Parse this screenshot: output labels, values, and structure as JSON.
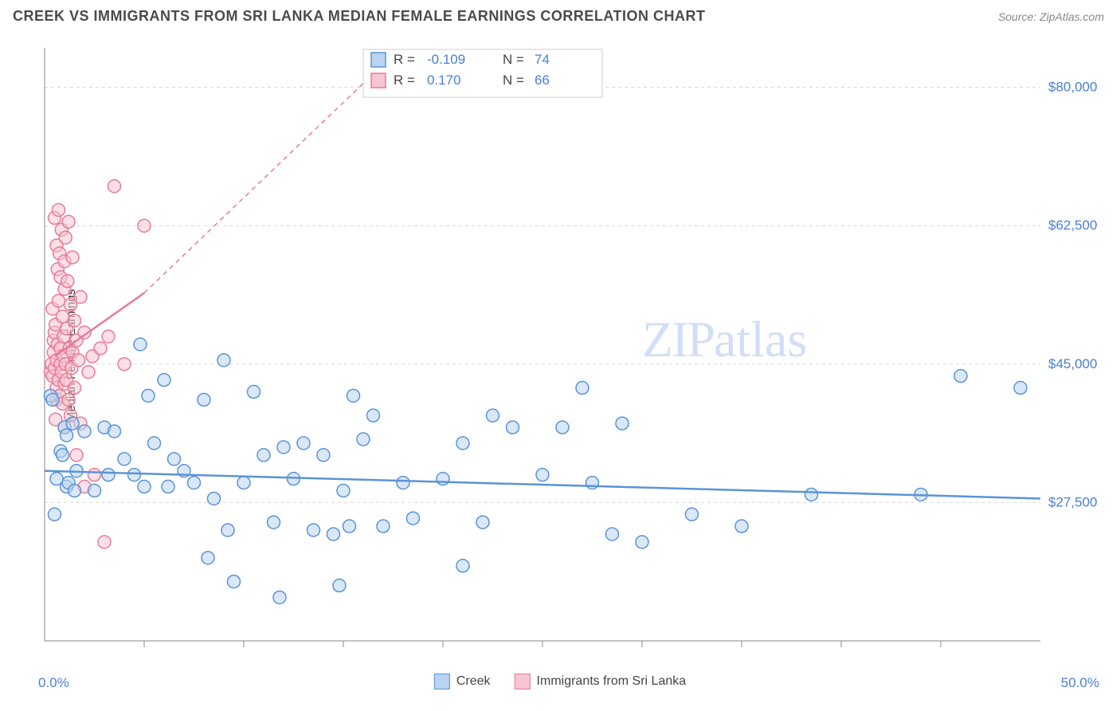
{
  "title": "CREEK VS IMMIGRANTS FROM SRI LANKA MEDIAN FEMALE EARNINGS CORRELATION CHART",
  "source": "Source: ZipAtlas.com",
  "ylabel": "Median Female Earnings",
  "chart": {
    "type": "scatter",
    "xlim": [
      0,
      50
    ],
    "ylim": [
      10000,
      85000
    ],
    "xlabel_min": "0.0%",
    "xlabel_max": "50.0%",
    "xticks": [
      5,
      10,
      15,
      20,
      25,
      30,
      35,
      40,
      45
    ],
    "yticks": [
      27500,
      45000,
      62500,
      80000
    ],
    "ytick_labels": [
      "$27,500",
      "$45,000",
      "$62,500",
      "$80,000"
    ],
    "ytick_color": "#4a7fd6",
    "grid_color": "#d8d8d8",
    "axis_color": "#888888",
    "background": "#ffffff",
    "marker_radius": 8,
    "marker_stroke_width": 1.5,
    "regression_line_width": 2.5,
    "series": [
      {
        "name": "Creek",
        "fill": "#b9d3f0",
        "stroke": "#5a94d6",
        "fill_opacity": 0.55,
        "R": "-0.109",
        "N": "74",
        "regression": {
          "x1": 0,
          "y1": 31500,
          "x2": 50,
          "y2": 28000,
          "dashed": false
        },
        "points": [
          [
            0.3,
            41000
          ],
          [
            0.4,
            40500
          ],
          [
            0.5,
            26000
          ],
          [
            0.6,
            30500
          ],
          [
            0.8,
            34000
          ],
          [
            0.9,
            33500
          ],
          [
            1.0,
            37000
          ],
          [
            1.1,
            36000
          ],
          [
            1.1,
            29500
          ],
          [
            1.2,
            30000
          ],
          [
            1.4,
            37500
          ],
          [
            1.5,
            29000
          ],
          [
            1.6,
            31500
          ],
          [
            2.0,
            36500
          ],
          [
            2.5,
            29000
          ],
          [
            3.0,
            37000
          ],
          [
            3.2,
            31000
          ],
          [
            3.5,
            36500
          ],
          [
            4.0,
            33000
          ],
          [
            4.5,
            31000
          ],
          [
            4.8,
            47500
          ],
          [
            5.0,
            29500
          ],
          [
            5.2,
            41000
          ],
          [
            5.5,
            35000
          ],
          [
            6.0,
            43000
          ],
          [
            6.2,
            29500
          ],
          [
            6.5,
            33000
          ],
          [
            7.0,
            31500
          ],
          [
            7.5,
            30000
          ],
          [
            8.0,
            40500
          ],
          [
            8.2,
            20500
          ],
          [
            8.5,
            28000
          ],
          [
            9.0,
            45500
          ],
          [
            9.2,
            24000
          ],
          [
            9.5,
            17500
          ],
          [
            10.0,
            30000
          ],
          [
            10.5,
            41500
          ],
          [
            11.0,
            33500
          ],
          [
            11.5,
            25000
          ],
          [
            11.8,
            15500
          ],
          [
            12.0,
            34500
          ],
          [
            12.5,
            30500
          ],
          [
            13.0,
            35000
          ],
          [
            13.5,
            24000
          ],
          [
            14.0,
            33500
          ],
          [
            14.5,
            23500
          ],
          [
            14.8,
            17000
          ],
          [
            15.0,
            29000
          ],
          [
            15.3,
            24500
          ],
          [
            15.5,
            41000
          ],
          [
            16.0,
            35500
          ],
          [
            16.5,
            38500
          ],
          [
            17.0,
            24500
          ],
          [
            18.0,
            30000
          ],
          [
            18.5,
            25500
          ],
          [
            20.0,
            30500
          ],
          [
            21.0,
            19500
          ],
          [
            21.0,
            35000
          ],
          [
            22.0,
            25000
          ],
          [
            22.5,
            38500
          ],
          [
            23.5,
            37000
          ],
          [
            25.0,
            31000
          ],
          [
            26.0,
            37000
          ],
          [
            27.0,
            42000
          ],
          [
            27.5,
            30000
          ],
          [
            28.5,
            23500
          ],
          [
            29.0,
            37500
          ],
          [
            30.0,
            22500
          ],
          [
            32.5,
            26000
          ],
          [
            35.0,
            24500
          ],
          [
            38.5,
            28500
          ],
          [
            44.0,
            28500
          ],
          [
            46.0,
            43500
          ],
          [
            49.0,
            42000
          ]
        ]
      },
      {
        "name": "Immigrants from Sri Lanka",
        "fill": "#f7c6d0",
        "stroke": "#e87a9a",
        "fill_opacity": 0.55,
        "R": "0.170",
        "N": "66",
        "regression": {
          "x1": 0.5,
          "y1": 46000,
          "x2": 5,
          "y2": 54000,
          "dashed": false
        },
        "regression_ext": {
          "x1": 5,
          "y1": 54000,
          "x2": 16,
          "y2": 80500,
          "dashed": true
        },
        "points": [
          [
            0.3,
            44000
          ],
          [
            0.35,
            45000
          ],
          [
            0.4,
            52000
          ],
          [
            0.4,
            43500
          ],
          [
            0.45,
            46500
          ],
          [
            0.45,
            48000
          ],
          [
            0.5,
            63500
          ],
          [
            0.5,
            49000
          ],
          [
            0.5,
            44500
          ],
          [
            0.55,
            50000
          ],
          [
            0.55,
            38000
          ],
          [
            0.6,
            60000
          ],
          [
            0.6,
            45500
          ],
          [
            0.6,
            42000
          ],
          [
            0.6,
            40500
          ],
          [
            0.65,
            57000
          ],
          [
            0.65,
            47500
          ],
          [
            0.7,
            53000
          ],
          [
            0.7,
            43000
          ],
          [
            0.7,
            64500
          ],
          [
            0.75,
            59000
          ],
          [
            0.75,
            41000
          ],
          [
            0.8,
            56000
          ],
          [
            0.8,
            47000
          ],
          [
            0.8,
            45000
          ],
          [
            0.85,
            62000
          ],
          [
            0.85,
            44000
          ],
          [
            0.9,
            51000
          ],
          [
            0.9,
            40000
          ],
          [
            0.95,
            46000
          ],
          [
            0.95,
            48500
          ],
          [
            1.0,
            58000
          ],
          [
            1.0,
            54500
          ],
          [
            1.0,
            42500
          ],
          [
            1.0,
            37000
          ],
          [
            1.05,
            61000
          ],
          [
            1.05,
            45000
          ],
          [
            1.1,
            49500
          ],
          [
            1.1,
            43000
          ],
          [
            1.15,
            55500
          ],
          [
            1.2,
            63000
          ],
          [
            1.2,
            40500
          ],
          [
            1.25,
            47000
          ],
          [
            1.3,
            52500
          ],
          [
            1.3,
            38500
          ],
          [
            1.35,
            44500
          ],
          [
            1.4,
            58500
          ],
          [
            1.4,
            46500
          ],
          [
            1.5,
            50500
          ],
          [
            1.5,
            42000
          ],
          [
            1.6,
            33500
          ],
          [
            1.6,
            48000
          ],
          [
            1.7,
            45500
          ],
          [
            1.8,
            53500
          ],
          [
            1.8,
            37500
          ],
          [
            2.0,
            29500
          ],
          [
            2.0,
            49000
          ],
          [
            2.2,
            44000
          ],
          [
            2.4,
            46000
          ],
          [
            2.5,
            31000
          ],
          [
            2.8,
            47000
          ],
          [
            3.0,
            22500
          ],
          [
            3.2,
            48500
          ],
          [
            3.5,
            67500
          ],
          [
            4.0,
            45000
          ],
          [
            5.0,
            62500
          ]
        ]
      }
    ],
    "stats_box": {
      "border": "#cccccc",
      "bg": "#ffffff",
      "label_color": "#444444",
      "value_color": "#4a7fd6",
      "fontsize": 17
    },
    "bottom_legend": [
      {
        "label": "Creek",
        "fill": "#b9d3f0",
        "stroke": "#5a94d6"
      },
      {
        "label": "Immigrants from Sri Lanka",
        "fill": "#f7c6d0",
        "stroke": "#e87a9a"
      }
    ],
    "watermark": {
      "text1": "ZIP",
      "text2": "atlas",
      "color": "#d0dff5"
    }
  }
}
